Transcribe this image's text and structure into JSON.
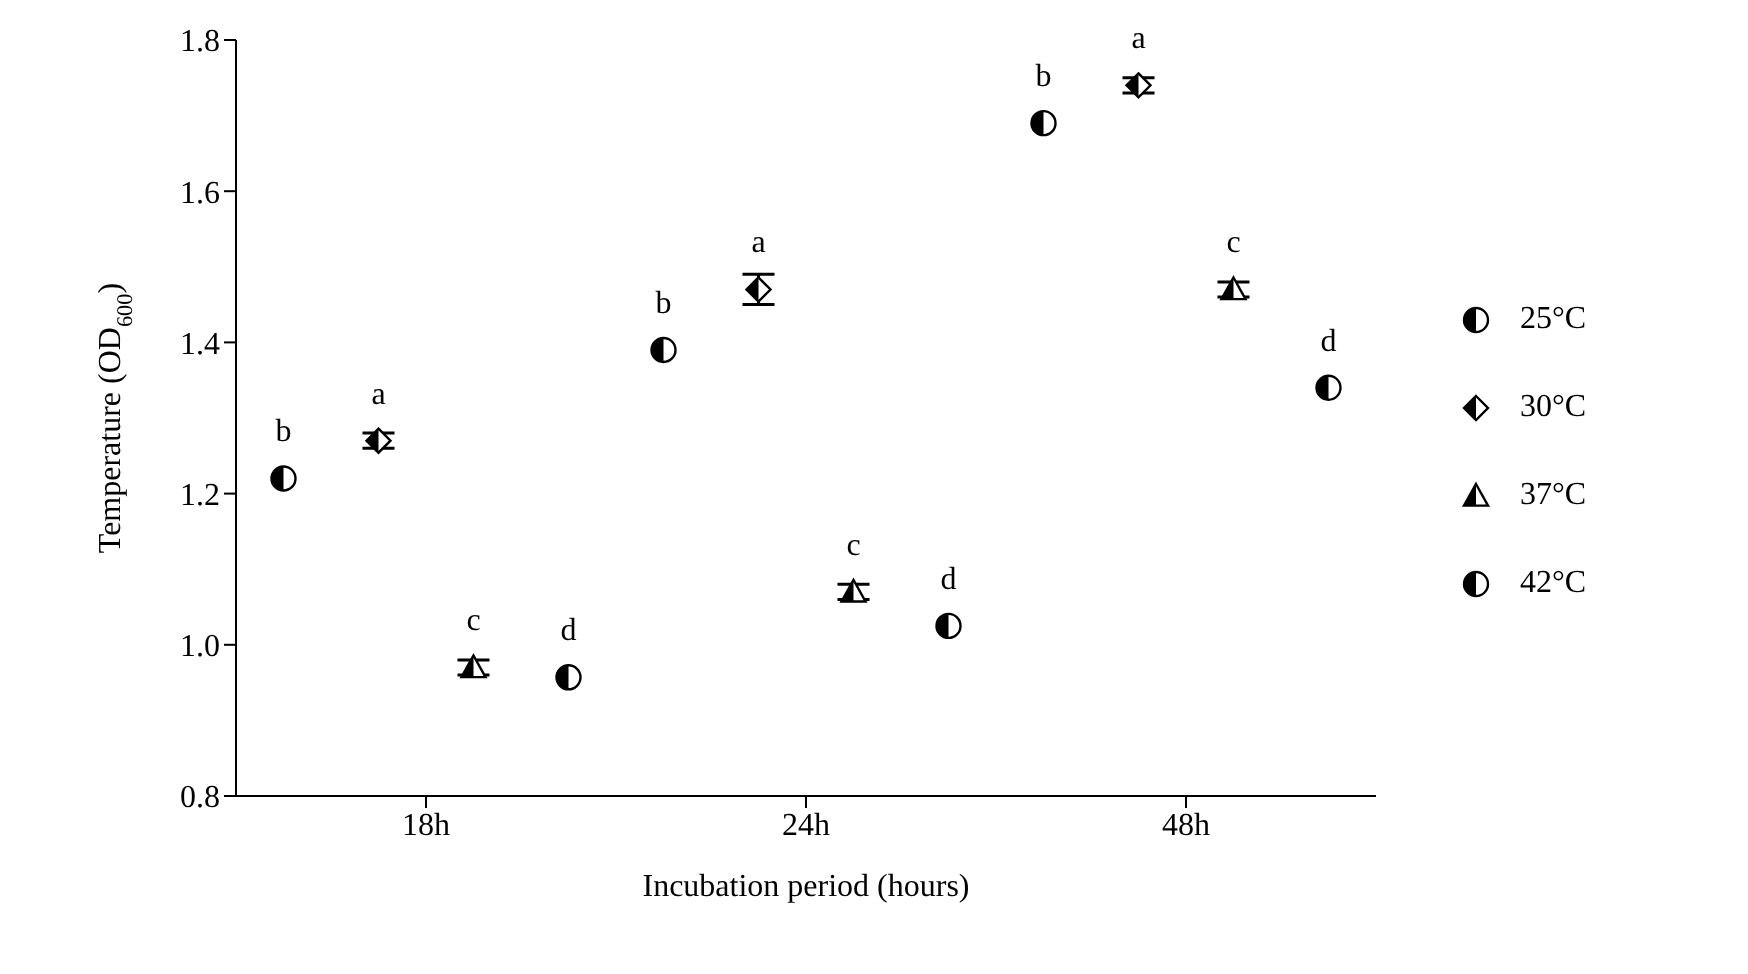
{
  "chart_data": {
    "type": "scatter",
    "xlabel": "Incubation period (hours)",
    "ylabel": "Temperature (OD$_{600}$)",
    "categories": [
      "18h",
      "24h",
      "48h"
    ],
    "series": [
      {
        "name": "25°C",
        "color": "#000000",
        "marker": "circle",
        "values": [
          1.22,
          1.39,
          1.69
        ],
        "value_labels": [
          "b",
          "b",
          "b"
        ]
      },
      {
        "name": "30°C",
        "color": "#000000",
        "marker": "diamond",
        "values": [
          1.27,
          1.47,
          1.74
        ],
        "errors": [
          0.01,
          0.02,
          0.01
        ],
        "value_labels": [
          "a",
          "a",
          "a"
        ]
      },
      {
        "name": "37°C",
        "color": "#000000",
        "marker": "triangle",
        "values": [
          0.97,
          1.07,
          1.47
        ],
        "errors": [
          0.01,
          0.01,
          0.01
        ],
        "value_labels": [
          "c",
          "c",
          "c"
        ]
      },
      {
        "name": "42°C",
        "color": "#000000",
        "marker": "circle",
        "values": [
          0.957,
          1.025,
          1.34
        ],
        "value_labels": [
          "d",
          "d",
          "d"
        ]
      }
    ],
    "ylim": [
      0.8,
      1.8
    ],
    "yticks": [
      {
        "value": 0.8,
        "label": "0.8"
      },
      {
        "value": 1,
        "label": "1.0"
      },
      {
        "value": 1.2,
        "label": "1.2"
      },
      {
        "value": 1.4,
        "label": "1.4"
      },
      {
        "value": 1.6,
        "label": "1.6"
      },
      {
        "value": 1.8,
        "label": "1.8"
      }
    ],
    "grid": false,
    "legend": "right"
  }
}
